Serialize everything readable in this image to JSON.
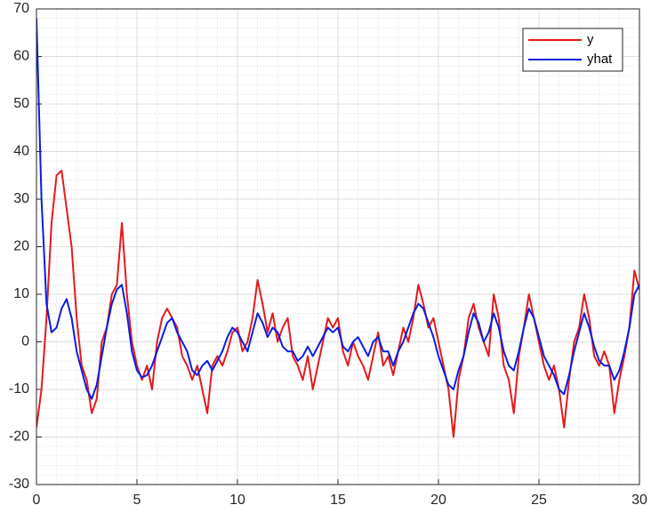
{
  "chart_data": {
    "type": "line",
    "x": [
      0,
      0.25,
      0.5,
      0.75,
      1,
      1.25,
      1.5,
      1.75,
      2,
      2.25,
      2.5,
      2.75,
      3,
      3.25,
      3.5,
      3.75,
      4,
      4.25,
      4.5,
      4.75,
      5,
      5.25,
      5.5,
      5.75,
      6,
      6.25,
      6.5,
      6.75,
      7,
      7.25,
      7.5,
      7.75,
      8,
      8.25,
      8.5,
      8.75,
      9,
      9.25,
      9.5,
      9.75,
      10,
      10.25,
      10.5,
      10.75,
      11,
      11.25,
      11.5,
      11.75,
      12,
      12.25,
      12.5,
      12.75,
      13,
      13.25,
      13.5,
      13.75,
      14,
      14.25,
      14.5,
      14.75,
      15,
      15.25,
      15.5,
      15.75,
      16,
      16.25,
      16.5,
      16.75,
      17,
      17.25,
      17.5,
      17.75,
      18,
      18.25,
      18.5,
      18.75,
      19,
      19.25,
      19.5,
      19.75,
      20,
      20.25,
      20.5,
      20.75,
      21,
      21.25,
      21.5,
      21.75,
      22,
      22.25,
      22.5,
      22.75,
      23,
      23.25,
      23.5,
      23.75,
      24,
      24.25,
      24.5,
      24.75,
      25,
      25.25,
      25.5,
      25.75,
      26,
      26.25,
      26.5,
      26.75,
      27,
      27.25,
      27.5,
      27.75,
      28,
      28.25,
      28.5,
      28.75,
      29,
      29.25,
      29.5,
      29.75,
      30
    ],
    "series": [
      {
        "name": "y",
        "color": "#e41a1c",
        "values": [
          -18,
          -10,
          5,
          25,
          35,
          36,
          28,
          20,
          5,
          -5,
          -8,
          -15,
          -12,
          0,
          3,
          10,
          12,
          25,
          10,
          0,
          -5,
          -8,
          -5,
          -10,
          0,
          5,
          7,
          5,
          3,
          -3,
          -5,
          -8,
          -5,
          -10,
          -15,
          -5,
          -3,
          -5,
          -2,
          2,
          3,
          -2,
          0,
          5,
          13,
          8,
          2,
          6,
          0,
          3,
          5,
          -3,
          -5,
          -8,
          -3,
          -10,
          -5,
          0,
          5,
          3,
          5,
          -2,
          -5,
          0,
          -3,
          -5,
          -8,
          -3,
          2,
          -5,
          -3,
          -7,
          -2,
          3,
          0,
          5,
          12,
          8,
          3,
          5,
          0,
          -5,
          -10,
          -20,
          -8,
          -3,
          5,
          8,
          3,
          0,
          -3,
          10,
          5,
          -5,
          -8,
          -15,
          -3,
          3,
          10,
          5,
          0,
          -5,
          -8,
          -5,
          -10,
          -18,
          -8,
          0,
          3,
          10,
          5,
          -3,
          -5,
          -2,
          -5,
          -15,
          -8,
          -3,
          3,
          15,
          11
        ]
      },
      {
        "name": "yhat",
        "color": "#0a1ee0",
        "values": [
          68,
          30,
          8,
          2,
          3,
          7,
          9,
          5,
          -2,
          -6,
          -10,
          -12,
          -9,
          -3,
          3,
          8,
          11,
          12,
          6,
          -2,
          -6,
          -7.5,
          -7,
          -5,
          -2,
          1,
          4,
          5,
          2,
          0,
          -2,
          -6,
          -7,
          -5,
          -4,
          -6,
          -4,
          -2,
          1,
          3,
          2,
          0,
          -2,
          2,
          6,
          4,
          1,
          3,
          2,
          -1,
          -2,
          -2,
          -4,
          -3,
          -1,
          -3,
          -1,
          1,
          3,
          2,
          3,
          -1,
          -2,
          0,
          1,
          -1,
          -3,
          0,
          1,
          -2,
          -2,
          -5,
          -2,
          0,
          3,
          6,
          8,
          7,
          4,
          1,
          -3,
          -6,
          -9,
          -10,
          -6,
          -3,
          2,
          6,
          4,
          0,
          2,
          6,
          3,
          -2,
          -5,
          -6,
          -2,
          3,
          7,
          5,
          1,
          -3,
          -5,
          -7,
          -10,
          -11,
          -7,
          -2,
          2,
          6,
          3,
          -1,
          -4,
          -5,
          -5,
          -8,
          -6,
          -2,
          3,
          10,
          12
        ]
      }
    ],
    "xlim": [
      0,
      30
    ],
    "xticks": [
      0,
      5,
      10,
      15,
      20,
      25,
      30
    ],
    "ylim": [
      -30,
      70
    ],
    "yticks": [
      -30,
      -20,
      -10,
      0,
      10,
      20,
      30,
      40,
      50,
      60,
      70
    ],
    "grid": true,
    "minor_grid": true,
    "legend": "northeast"
  }
}
